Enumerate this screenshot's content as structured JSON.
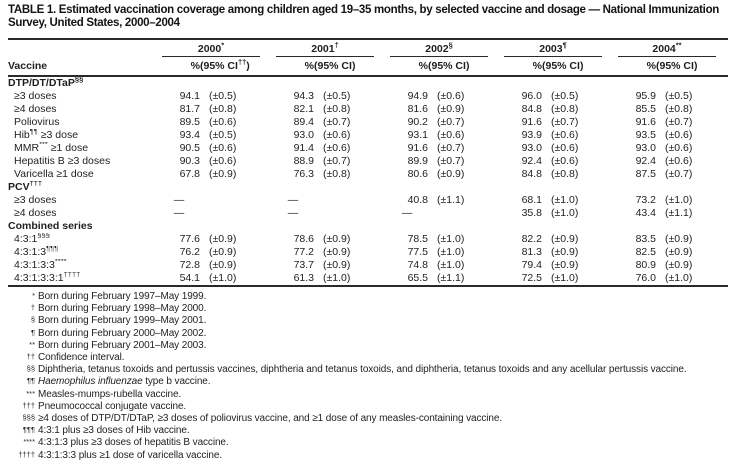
{
  "title": {
    "line1": "TABLE 1. Estimated vaccination coverage among children aged 19–35 months, by selected vaccine and dosage — National Immunization",
    "line2": "Survey, United States, 2000–2004"
  },
  "table": {
    "vaccine_col_header": "Vaccine",
    "pct_header": "%",
    "years": [
      {
        "label": "2000",
        "sup": "*"
      },
      {
        "label": "2001",
        "sup": "†"
      },
      {
        "label": "2002",
        "sup": "§"
      },
      {
        "label": "2003",
        "sup": "¶"
      },
      {
        "label": "2004",
        "sup": "**"
      }
    ],
    "ci_headers": [
      {
        "pre": "(95% CI",
        "sup": "††",
        "post": ")"
      },
      {
        "pre": "(95% CI",
        "sup": "",
        "post": ")"
      },
      {
        "pre": "(95% CI",
        "sup": "",
        "post": ")"
      },
      {
        "pre": "(95% CI",
        "sup": "",
        "post": ")"
      },
      {
        "pre": "(95% CI",
        "sup": "",
        "post": ")"
      }
    ],
    "rows": [
      {
        "section": true,
        "label": {
          "pre": "DTP/DT/DTaP",
          "sup": "§§",
          "post": ""
        },
        "values": []
      },
      {
        "section": false,
        "label": {
          "pre": "≥3 doses",
          "sup": "",
          "post": ""
        },
        "values": [
          "94.1",
          "(±0.5)",
          "94.3",
          "(±0.5)",
          "94.9",
          "(±0.6)",
          "96.0",
          "(±0.5)",
          "95.9",
          "(±0.5)"
        ]
      },
      {
        "section": false,
        "label": {
          "pre": "≥4 doses",
          "sup": "",
          "post": ""
        },
        "values": [
          "81.7",
          "(±0.8)",
          "82.1",
          "(±0.8)",
          "81.6",
          "(±0.9)",
          "84.8",
          "(±0.8)",
          "85.5",
          "(±0.8)"
        ]
      },
      {
        "section": false,
        "label": {
          "pre": "Poliovirus",
          "sup": "",
          "post": ""
        },
        "values": [
          "89.5",
          "(±0.6)",
          "89.4",
          "(±0.7)",
          "90.2",
          "(±0.7)",
          "91.6",
          "(±0.7)",
          "91.6",
          "(±0.7)"
        ]
      },
      {
        "section": false,
        "label": {
          "pre": "Hib",
          "sup": "¶¶",
          "post": " ≥3 dose"
        },
        "values": [
          "93.4",
          "(±0.5)",
          "93.0",
          "(±0.6)",
          "93.1",
          "(±0.6)",
          "93.9",
          "(±0.6)",
          "93.5",
          "(±0.6)"
        ]
      },
      {
        "section": false,
        "label": {
          "pre": "MMR",
          "sup": "***",
          "post": " ≥1 dose"
        },
        "values": [
          "90.5",
          "(±0.6)",
          "91.4",
          "(±0.6)",
          "91.6",
          "(±0.7)",
          "93.0",
          "(±0.6)",
          "93.0",
          "(±0.6)"
        ]
      },
      {
        "section": false,
        "label": {
          "pre": "Hepatitis B ≥3 doses",
          "sup": "",
          "post": ""
        },
        "values": [
          "90.3",
          "(±0.6)",
          "88.9",
          "(±0.7)",
          "89.9",
          "(±0.7)",
          "92.4",
          "(±0.6)",
          "92.4",
          "(±0.6)"
        ]
      },
      {
        "section": false,
        "label": {
          "pre": "Varicella ≥1 dose",
          "sup": "",
          "post": ""
        },
        "values": [
          "67.8",
          "(±0.9)",
          "76.3",
          "(±0.8)",
          "80.6",
          "(±0.9)",
          "84.8",
          "(±0.8)",
          "87.5",
          "(±0.7)"
        ]
      },
      {
        "section": true,
        "label": {
          "pre": "PCV",
          "sup": "†††",
          "post": ""
        },
        "values": []
      },
      {
        "section": false,
        "label": {
          "pre": "≥3 doses",
          "sup": "",
          "post": ""
        },
        "values": [
          "—",
          "",
          "—",
          "",
          "40.8",
          "(±1.1)",
          "68.1",
          "(±1.0)",
          "73.2",
          "(±1.0)"
        ]
      },
      {
        "section": false,
        "label": {
          "pre": "≥4 doses",
          "sup": "",
          "post": ""
        },
        "values": [
          "—",
          "",
          "—",
          "",
          "—",
          "",
          "35.8",
          "(±1.0)",
          "43.4",
          "(±1.1)"
        ]
      },
      {
        "section": true,
        "label": {
          "pre": "Combined series",
          "sup": "",
          "post": ""
        },
        "values": []
      },
      {
        "section": false,
        "label": {
          "pre": "4:3:1",
          "sup": "§§§",
          "post": ""
        },
        "values": [
          "77.6",
          "(±0.9)",
          "78.6",
          "(±0.9)",
          "78.5",
          "(±1.0)",
          "82.2",
          "(±0.9)",
          "83.5",
          "(±0.9)"
        ]
      },
      {
        "section": false,
        "label": {
          "pre": "4:3:1:3",
          "sup": "¶¶¶",
          "post": ""
        },
        "values": [
          "76.2",
          "(±0.9)",
          "77.2",
          "(±0.9)",
          "77.5",
          "(±1.0)",
          "81.3",
          "(±0.9)",
          "82.5",
          "(±0.9)"
        ]
      },
      {
        "section": false,
        "label": {
          "pre": "4:3:1:3:3",
          "sup": "****",
          "post": ""
        },
        "values": [
          "72.8",
          "(±0.9)",
          "73.7",
          "(±0.9)",
          "74.8",
          "(±1.0)",
          "79.4",
          "(±0.9)",
          "80.9",
          "(±0.9)"
        ]
      },
      {
        "section": false,
        "label": {
          "pre": "4:3:1:3:3:1",
          "sup": "††††",
          "post": ""
        },
        "values": [
          "54.1",
          "(±1.0)",
          "61.3",
          "(±1.0)",
          "65.5",
          "(±1.1)",
          "72.5",
          "(±1.0)",
          "76.0",
          "(±1.0)"
        ]
      }
    ]
  },
  "footnotes": [
    {
      "marker": "*",
      "italic": "",
      "text": "Born during February 1997–May 1999."
    },
    {
      "marker": "†",
      "italic": "",
      "text": "Born during February 1998–May 2000."
    },
    {
      "marker": "§",
      "italic": "",
      "text": "Born during February 1999–May 2001."
    },
    {
      "marker": "¶",
      "italic": "",
      "text": "Born during February 2000–May 2002."
    },
    {
      "marker": "**",
      "italic": "",
      "text": "Born during February 2001–May 2003."
    },
    {
      "marker": "††",
      "italic": "",
      "text": "Confidence interval."
    },
    {
      "marker": "§§",
      "italic": "",
      "text": "Diphtheria, tetanus toxoids and pertussis vaccines, diphtheria and tetanus toxoids, and diphtheria, tetanus toxoids and any acellular pertussis vaccine."
    },
    {
      "marker": "¶¶",
      "italic": "Haemophilus influenzae",
      "text": " type b vaccine."
    },
    {
      "marker": "***",
      "italic": "",
      "text": "Measles-mumps-rubella vaccine."
    },
    {
      "marker": "†††",
      "italic": "",
      "text": "Pneumococcal conjugate vaccine."
    },
    {
      "marker": "§§§",
      "italic": "",
      "text": "≥4 doses of DTP/DT/DTaP, ≥3 doses of poliovirus vaccine, and ≥1 dose of any measles-containing vaccine."
    },
    {
      "marker": "¶¶¶",
      "italic": "",
      "text": "4:3:1 plus ≥3 doses of Hib vaccine."
    },
    {
      "marker": "****",
      "italic": "",
      "text": "4:3:1:3 plus ≥3 doses of hepatitis B vaccine."
    },
    {
      "marker": "††††",
      "italic": "",
      "text": "4:3:1:3:3 plus ≥1 dose of varicella vaccine."
    }
  ]
}
